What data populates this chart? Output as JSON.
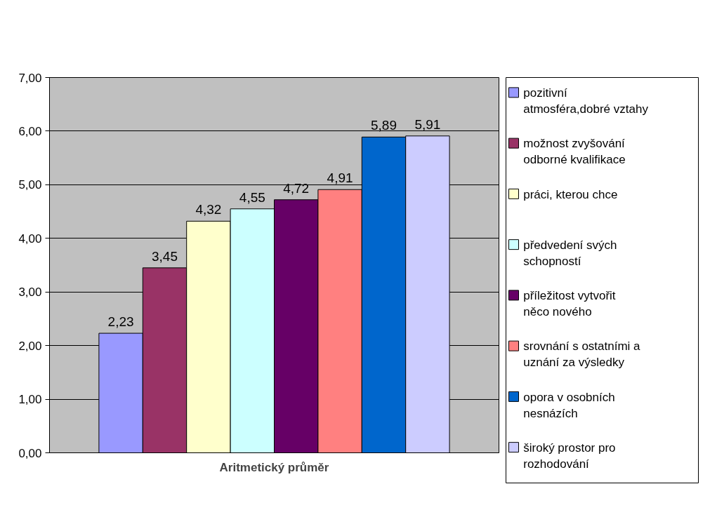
{
  "chart_data": {
    "type": "bar",
    "categories": [
      null
    ],
    "xlabel": "Aritmetický průměr",
    "series": [
      {
        "name": "pozitivní atmosféra,dobré vztahy",
        "color": "#9999ff",
        "values": [
          2.23
        ],
        "value_labels": [
          "2,23"
        ]
      },
      {
        "name": "možnost zvyšování odborné kvalifikace",
        "color": "#993366",
        "values": [
          3.45
        ],
        "value_labels": [
          "3,45"
        ]
      },
      {
        "name": "práci, kterou chce",
        "color": "#ffffcc",
        "values": [
          4.32
        ],
        "value_labels": [
          "4,32"
        ]
      },
      {
        "name": "předvedení svých schopností",
        "color": "#ccffff",
        "values": [
          4.55
        ],
        "value_labels": [
          "4,55"
        ]
      },
      {
        "name": "příležitost vytvořit něco nového",
        "color": "#660066",
        "values": [
          4.72
        ],
        "value_labels": [
          "4,72"
        ]
      },
      {
        "name": "srovnání s ostatními a uznání za výsledky",
        "color": "#ff8080",
        "values": [
          4.91
        ],
        "value_labels": [
          "4,91"
        ]
      },
      {
        "name": "opora v osobních nesnázích",
        "color": "#0066cc",
        "values": [
          5.89
        ],
        "value_labels": [
          "5,89"
        ]
      },
      {
        "name": "široký prostor pro rozhodování",
        "color": "#ccccff",
        "values": [
          5.91
        ],
        "value_labels": [
          "5,91"
        ]
      }
    ],
    "ylim": [
      0,
      7
    ],
    "yticks": [
      {
        "value": 0,
        "label": "0,00"
      },
      {
        "value": 1,
        "label": "1,00"
      },
      {
        "value": 2,
        "label": "2,00"
      },
      {
        "value": 3,
        "label": "3,00"
      },
      {
        "value": 4,
        "label": "4,00"
      },
      {
        "value": 5,
        "label": "5,00"
      },
      {
        "value": 6,
        "label": "6,00"
      },
      {
        "value": 7,
        "label": "7,00"
      }
    ],
    "grid": "y",
    "legend": "right"
  }
}
